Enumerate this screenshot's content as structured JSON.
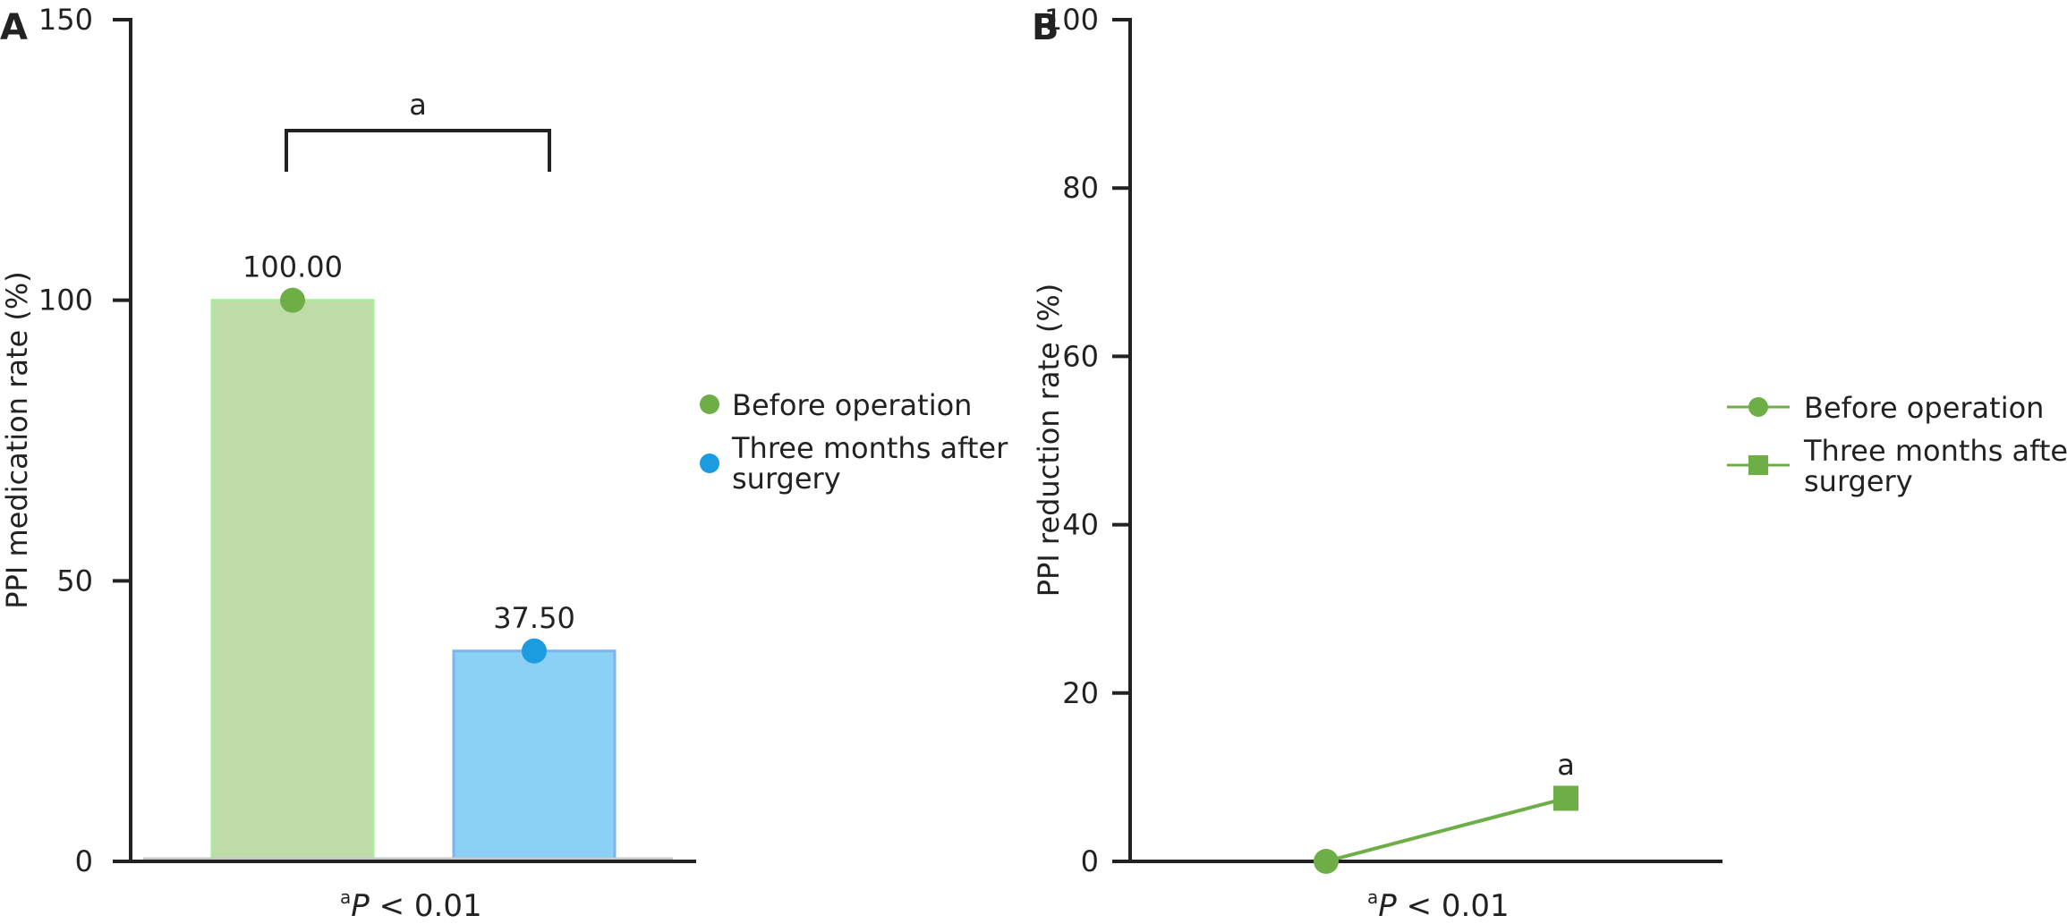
{
  "panels": {
    "a": {
      "letter": "A",
      "footnote_sup": "a",
      "footnote_p": "P",
      "footnote_rest": " < 0.01"
    },
    "b": {
      "letter": "B",
      "footnote_sup": "a",
      "footnote_p": "P",
      "footnote_rest": " < 0.01"
    }
  },
  "colors": {
    "green": "#6EAE47",
    "green_bar": "#BEDBA8",
    "green_bar_edge": "#A6EE98",
    "blue": "#1B9BE0",
    "blue_bar": "#8BD1F5",
    "blue_bar_edge": "#7DB4EE"
  },
  "chart_data": [
    {
      "type": "bar",
      "panel": "A",
      "ylabel": "PPI medication rate (%)",
      "xlabel": "",
      "ylim": [
        0,
        150
      ],
      "yticks": [
        0,
        50,
        100,
        150
      ],
      "categories": [
        "Before operation",
        "Three months after surgery"
      ],
      "values": [
        100.0,
        37.5
      ],
      "data_labels": [
        "100.00",
        "37.50"
      ],
      "legend": [
        "Before operation",
        "Three months after surgery"
      ],
      "legend_position": "right",
      "annotation": {
        "text": "a",
        "type": "significance-bracket"
      }
    },
    {
      "type": "line",
      "panel": "B",
      "ylabel": "PPI reduction rate (%)",
      "xlabel": "",
      "ylim": [
        0,
        100
      ],
      "yticks": [
        0,
        20,
        40,
        60,
        80,
        100
      ],
      "categories": [
        "Before operation",
        "Three months after surgery"
      ],
      "values": [
        0,
        7.5
      ],
      "legend": [
        "Before operation",
        "Three months after surgery"
      ],
      "legend_position": "right",
      "annotation": {
        "text": "a"
      }
    }
  ]
}
